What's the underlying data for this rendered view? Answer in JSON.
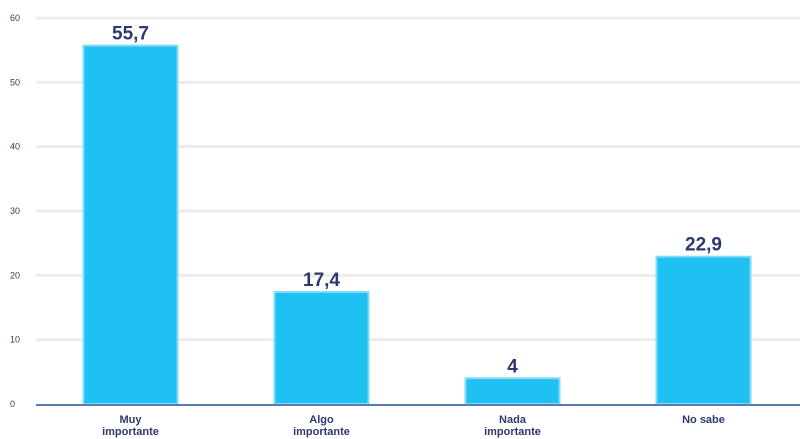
{
  "colors": {
    "bar": "#1fc0f2",
    "bar_edge": "#7fdcf7",
    "text": "#2e3a6e",
    "grid": "#ececec",
    "baseline": "#5a7bb0"
  },
  "chart_data": {
    "type": "bar",
    "title": "",
    "xlabel": "",
    "ylabel": "",
    "categories": [
      [
        "Muy",
        "importante"
      ],
      [
        "Algo",
        "importante"
      ],
      [
        "Nada",
        "importante"
      ],
      [
        "No sabe"
      ]
    ],
    "values": [
      55.7,
      17.4,
      4,
      22.9
    ],
    "value_labels": [
      "55,7",
      "17,4",
      "4",
      "22,9"
    ],
    "ylim": [
      0,
      60
    ],
    "yticks": [
      0,
      10,
      20,
      30,
      40,
      50,
      60
    ],
    "grid": true,
    "legend": "none"
  }
}
